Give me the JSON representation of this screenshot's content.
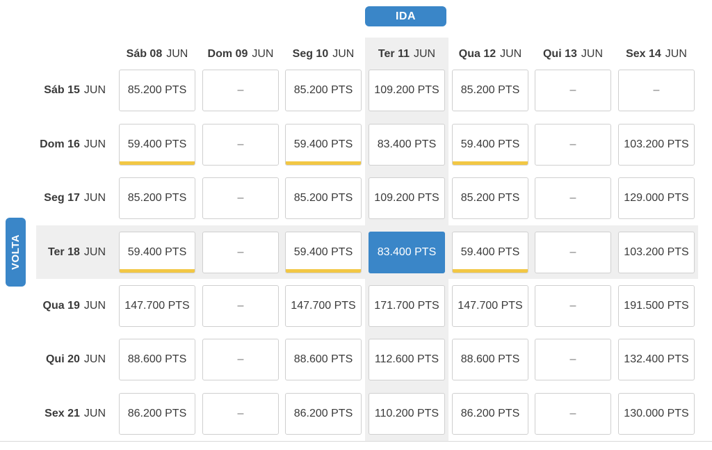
{
  "ida_label": "IDA",
  "volta_label": "VOLTA",
  "outbound_days": [
    {
      "day": "Sáb 08",
      "month": "JUN"
    },
    {
      "day": "Dom 09",
      "month": "JUN"
    },
    {
      "day": "Seg 10",
      "month": "JUN"
    },
    {
      "day": "Ter 11",
      "month": "JUN"
    },
    {
      "day": "Qua 12",
      "month": "JUN"
    },
    {
      "day": "Qui 13",
      "month": "JUN"
    },
    {
      "day": "Sex 14",
      "month": "JUN"
    }
  ],
  "return_days": [
    {
      "day": "Sáb 15",
      "month": "JUN"
    },
    {
      "day": "Dom 16",
      "month": "JUN"
    },
    {
      "day": "Seg 17",
      "month": "JUN"
    },
    {
      "day": "Ter 18",
      "month": "JUN"
    },
    {
      "day": "Qua 19",
      "month": "JUN"
    },
    {
      "day": "Qui 20",
      "month": "JUN"
    },
    {
      "day": "Sex 21",
      "month": "JUN"
    }
  ],
  "prices": [
    [
      "85.200 PTS",
      "–",
      "85.200 PTS",
      "109.200 PTS",
      "85.200 PTS",
      "–",
      "–"
    ],
    [
      "59.400 PTS",
      "–",
      "59.400 PTS",
      "83.400 PTS",
      "59.400 PTS",
      "–",
      "103.200 PTS"
    ],
    [
      "85.200 PTS",
      "–",
      "85.200 PTS",
      "109.200 PTS",
      "85.200 PTS",
      "–",
      "129.000 PTS"
    ],
    [
      "59.400 PTS",
      "–",
      "59.400 PTS",
      "83.400 PTS",
      "59.400 PTS",
      "–",
      "103.200 PTS"
    ],
    [
      "147.700 PTS",
      "–",
      "147.700 PTS",
      "171.700 PTS",
      "147.700 PTS",
      "–",
      "191.500 PTS"
    ],
    [
      "88.600 PTS",
      "–",
      "88.600 PTS",
      "112.600 PTS",
      "88.600 PTS",
      "–",
      "132.400 PTS"
    ],
    [
      "86.200 PTS",
      "–",
      "86.200 PTS",
      "110.200 PTS",
      "86.200 PTS",
      "–",
      "130.000 PTS"
    ]
  ],
  "lowest_price_cells": [
    [
      1,
      0
    ],
    [
      1,
      2
    ],
    [
      1,
      4
    ],
    [
      3,
      0
    ],
    [
      3,
      2
    ],
    [
      3,
      4
    ]
  ],
  "selected": {
    "row": 3,
    "col": 3
  },
  "colors": {
    "accent": "#3a86c8",
    "lowest_price_bar": "#f2c744",
    "highlight_band": "#efefef"
  }
}
